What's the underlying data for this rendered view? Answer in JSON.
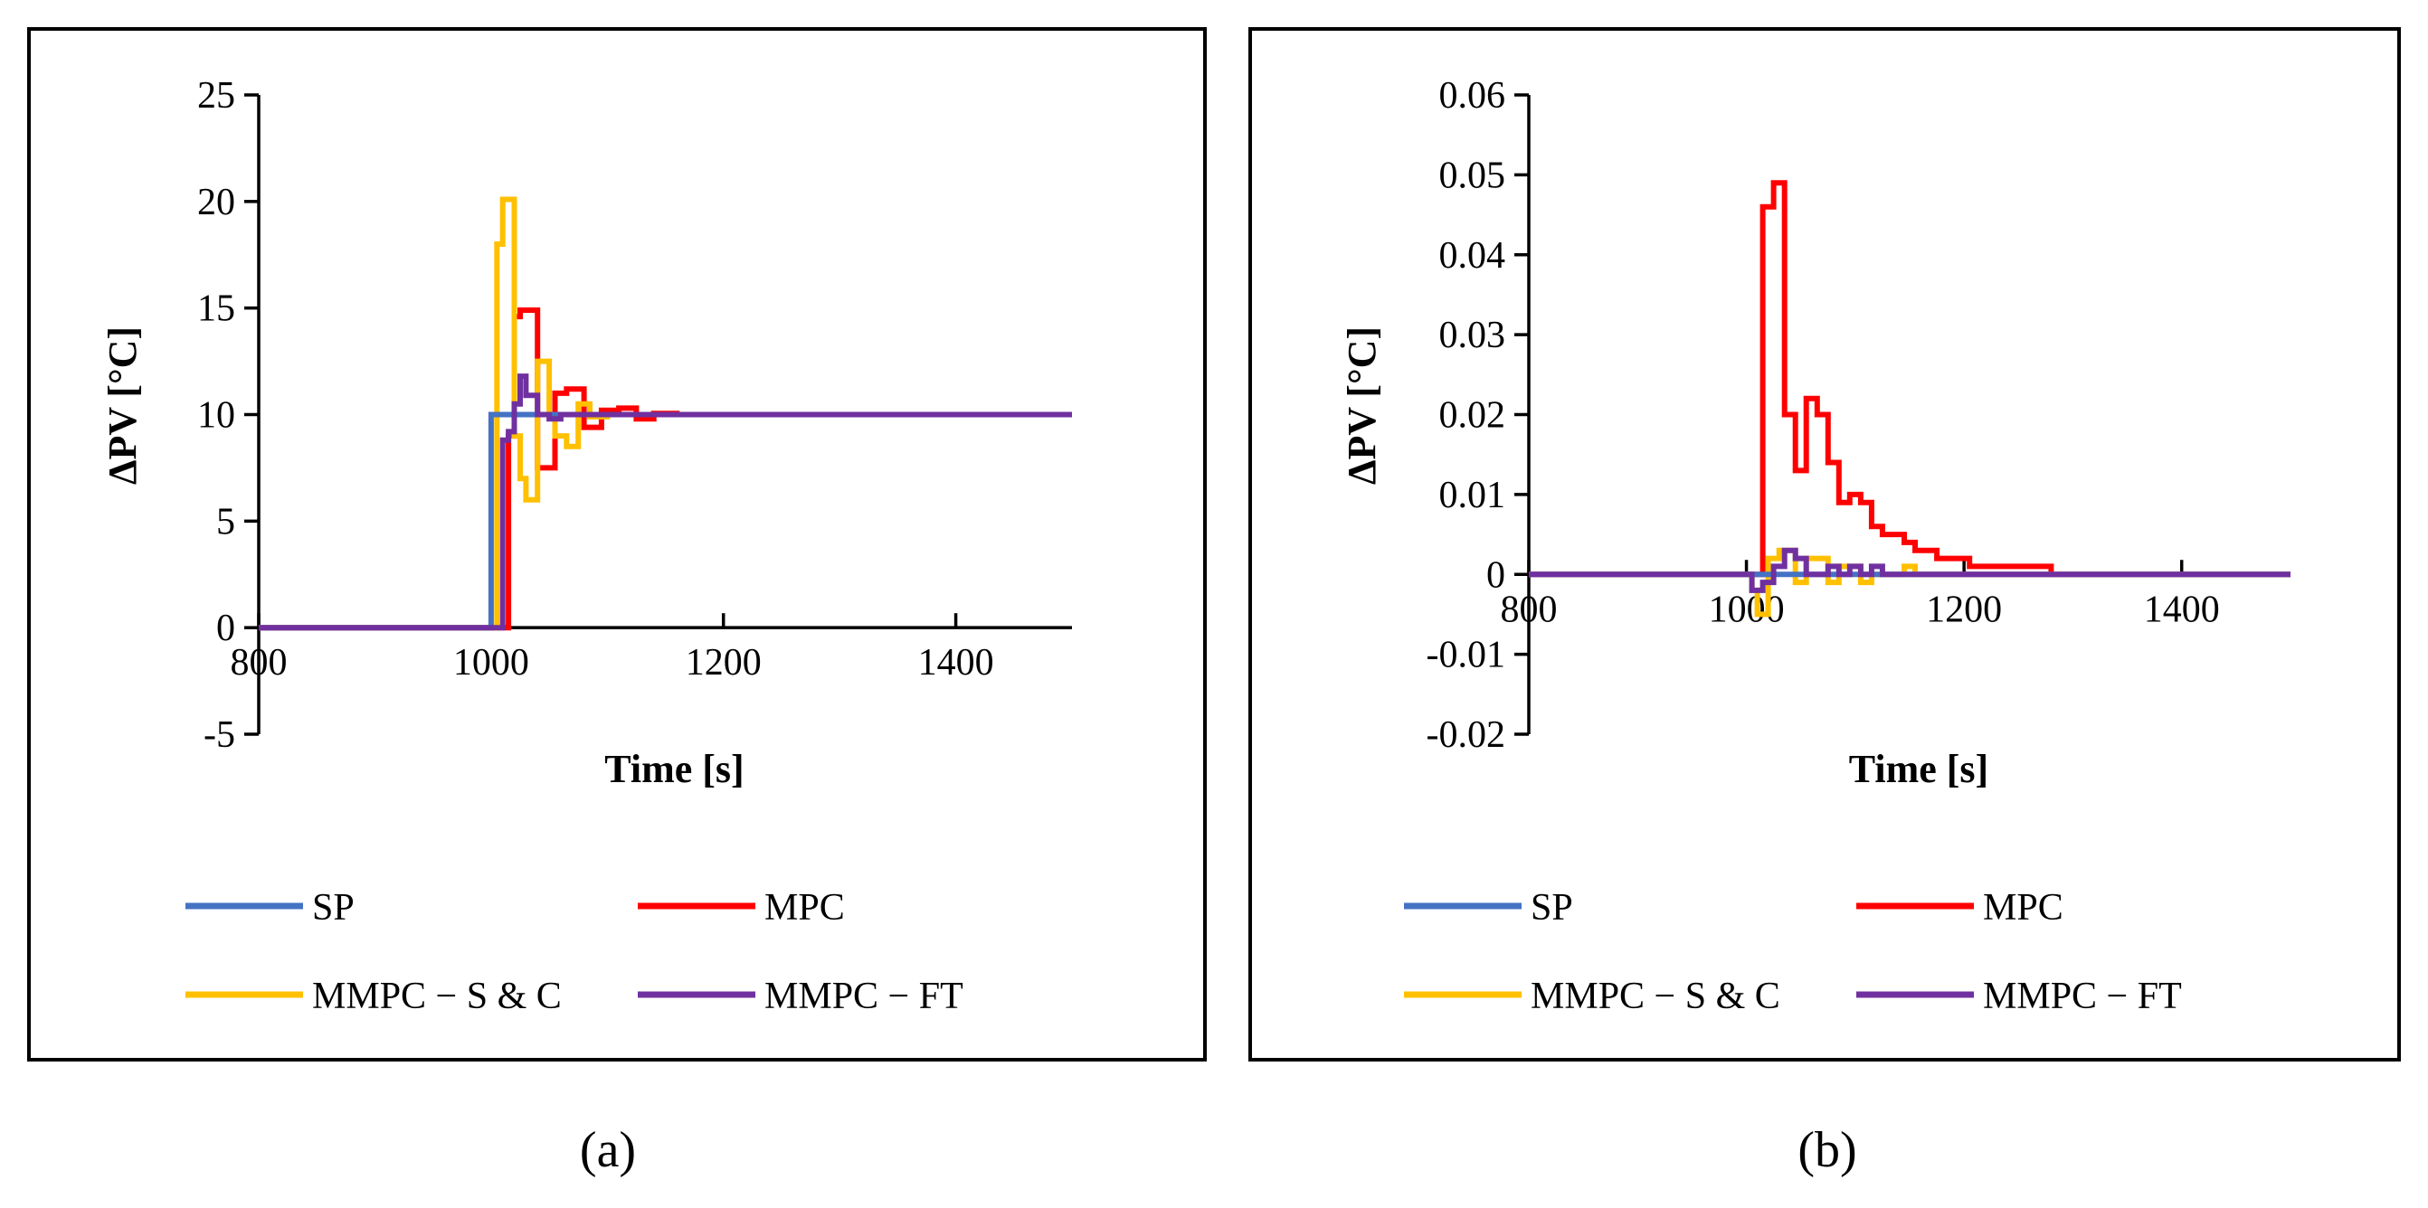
{
  "chart_data": [
    {
      "type": "line",
      "panel": "a",
      "caption": "(a)",
      "xlabel": "Time [s]",
      "ylabel": "ΔPV [°C]",
      "xlim": [
        800,
        1500
      ],
      "ylim": [
        -5,
        25
      ],
      "xticks": [
        800,
        1000,
        1200,
        1400
      ],
      "yticks": [
        -5,
        0,
        5,
        10,
        15,
        20,
        25
      ],
      "xtick_labels": [
        "800",
        "1000",
        "1200",
        "1400"
      ],
      "ytick_labels": [
        "-5",
        "0",
        "5",
        "10",
        "15",
        "20",
        "25"
      ],
      "legend": [
        "SP",
        "MPC",
        "MMPC − S & C",
        "MMPC − FT"
      ],
      "series": [
        {
          "name": "SP",
          "color": "#4472C4",
          "x": [
            800,
            1000,
            1000,
            1500
          ],
          "y": [
            0,
            0,
            10,
            10
          ]
        },
        {
          "name": "MPC",
          "color": "#FF0000",
          "x": [
            800,
            1015,
            1015,
            1020,
            1020,
            1025,
            1025,
            1040,
            1040,
            1055,
            1055,
            1065,
            1065,
            1080,
            1080,
            1095,
            1095,
            1110,
            1110,
            1125,
            1125,
            1140,
            1140,
            1160,
            1160,
            1500
          ],
          "y": [
            0,
            0,
            9,
            9,
            14.6,
            14.6,
            14.9,
            14.9,
            7.5,
            7.5,
            11,
            11,
            11.2,
            11.2,
            9.4,
            9.4,
            10.2,
            10.2,
            10.3,
            10.3,
            9.8,
            9.8,
            10.05,
            10.05,
            10,
            10
          ]
        },
        {
          "name": "MMPC − S & C",
          "color": "#FFC000",
          "x": [
            800,
            1005,
            1005,
            1010,
            1010,
            1020,
            1020,
            1025,
            1025,
            1030,
            1030,
            1040,
            1040,
            1050,
            1050,
            1055,
            1055,
            1065,
            1065,
            1075,
            1075,
            1085,
            1085,
            1100,
            1100,
            1500
          ],
          "y": [
            0,
            0,
            18,
            18,
            20.1,
            20.1,
            9,
            9,
            7,
            7,
            6,
            6,
            12.5,
            12.5,
            10,
            10,
            9,
            9,
            8.5,
            8.5,
            10.5,
            10.5,
            9.9,
            9.9,
            10,
            10
          ]
        },
        {
          "name": "MMPC − FT",
          "color": "#7030A0",
          "x": [
            800,
            1010,
            1010,
            1015,
            1015,
            1020,
            1020,
            1025,
            1025,
            1030,
            1030,
            1040,
            1040,
            1050,
            1050,
            1060,
            1060,
            1500
          ],
          "y": [
            0,
            0,
            8.8,
            8.8,
            9.2,
            9.2,
            10.5,
            10.5,
            11.8,
            11.8,
            10.9,
            10.9,
            10,
            10,
            9.8,
            9.8,
            10,
            10
          ]
        }
      ]
    },
    {
      "type": "line",
      "panel": "b",
      "caption": "(b)",
      "xlabel": "Time [s]",
      "ylabel": "ΔPV [°C]",
      "xlim": [
        800,
        1500
      ],
      "ylim": [
        -0.02,
        0.06
      ],
      "xticks": [
        800,
        1000,
        1200,
        1400
      ],
      "yticks": [
        -0.02,
        -0.01,
        0,
        0.01,
        0.02,
        0.03,
        0.04,
        0.05,
        0.06
      ],
      "xtick_labels": [
        "800",
        "1000",
        "1200",
        "1400"
      ],
      "ytick_labels": [
        "-0.02",
        "-0.01",
        "0",
        "0.01",
        "0.02",
        "0.03",
        "0.04",
        "0.05",
        "0.06"
      ],
      "legend": [
        "SP",
        "MPC",
        "MMPC − S & C",
        "MMPC − FT"
      ],
      "series": [
        {
          "name": "SP",
          "color": "#4472C4",
          "x": [
            800,
            1500
          ],
          "y": [
            0,
            0
          ]
        },
        {
          "name": "MPC",
          "color": "#FF0000",
          "x": [
            800,
            1015,
            1015,
            1025,
            1025,
            1035,
            1035,
            1045,
            1045,
            1055,
            1055,
            1065,
            1065,
            1075,
            1075,
            1085,
            1085,
            1095,
            1095,
            1105,
            1105,
            1115,
            1115,
            1125,
            1125,
            1145,
            1145,
            1155,
            1155,
            1175,
            1175,
            1205,
            1205,
            1280,
            1280,
            1500
          ],
          "y": [
            0,
            0,
            0.046,
            0.046,
            0.049,
            0.049,
            0.02,
            0.02,
            0.013,
            0.013,
            0.022,
            0.022,
            0.02,
            0.02,
            0.014,
            0.014,
            0.009,
            0.009,
            0.01,
            0.01,
            0.009,
            0.009,
            0.006,
            0.006,
            0.005,
            0.005,
            0.004,
            0.004,
            0.003,
            0.003,
            0.002,
            0.002,
            0.001,
            0.001,
            0,
            0
          ]
        },
        {
          "name": "MMPC − S & C",
          "color": "#FFC000",
          "x": [
            800,
            1005,
            1005,
            1010,
            1010,
            1020,
            1020,
            1030,
            1030,
            1045,
            1045,
            1055,
            1055,
            1075,
            1075,
            1085,
            1085,
            1105,
            1105,
            1115,
            1115,
            1145,
            1145,
            1155,
            1155,
            1500
          ],
          "y": [
            0,
            0,
            -0.002,
            -0.002,
            -0.005,
            -0.005,
            0.002,
            0.002,
            0.003,
            0.003,
            -0.001,
            -0.001,
            0.002,
            0.002,
            -0.001,
            -0.001,
            0.001,
            0.001,
            -0.001,
            -0.001,
            0,
            0,
            0.001,
            0.001,
            0,
            0
          ]
        },
        {
          "name": "MMPC − FT",
          "color": "#7030A0",
          "x": [
            800,
            1005,
            1005,
            1015,
            1015,
            1025,
            1025,
            1035,
            1035,
            1045,
            1045,
            1055,
            1055,
            1075,
            1075,
            1085,
            1085,
            1095,
            1095,
            1105,
            1105,
            1115,
            1115,
            1125,
            1125,
            1500
          ],
          "y": [
            0,
            0,
            -0.002,
            -0.002,
            -0.001,
            -0.001,
            0.001,
            0.001,
            0.003,
            0.003,
            0.002,
            0.002,
            0,
            0,
            0.001,
            0.001,
            0,
            0,
            0.001,
            0.001,
            0,
            0,
            0.001,
            0.001,
            0,
            0
          ]
        }
      ]
    }
  ]
}
